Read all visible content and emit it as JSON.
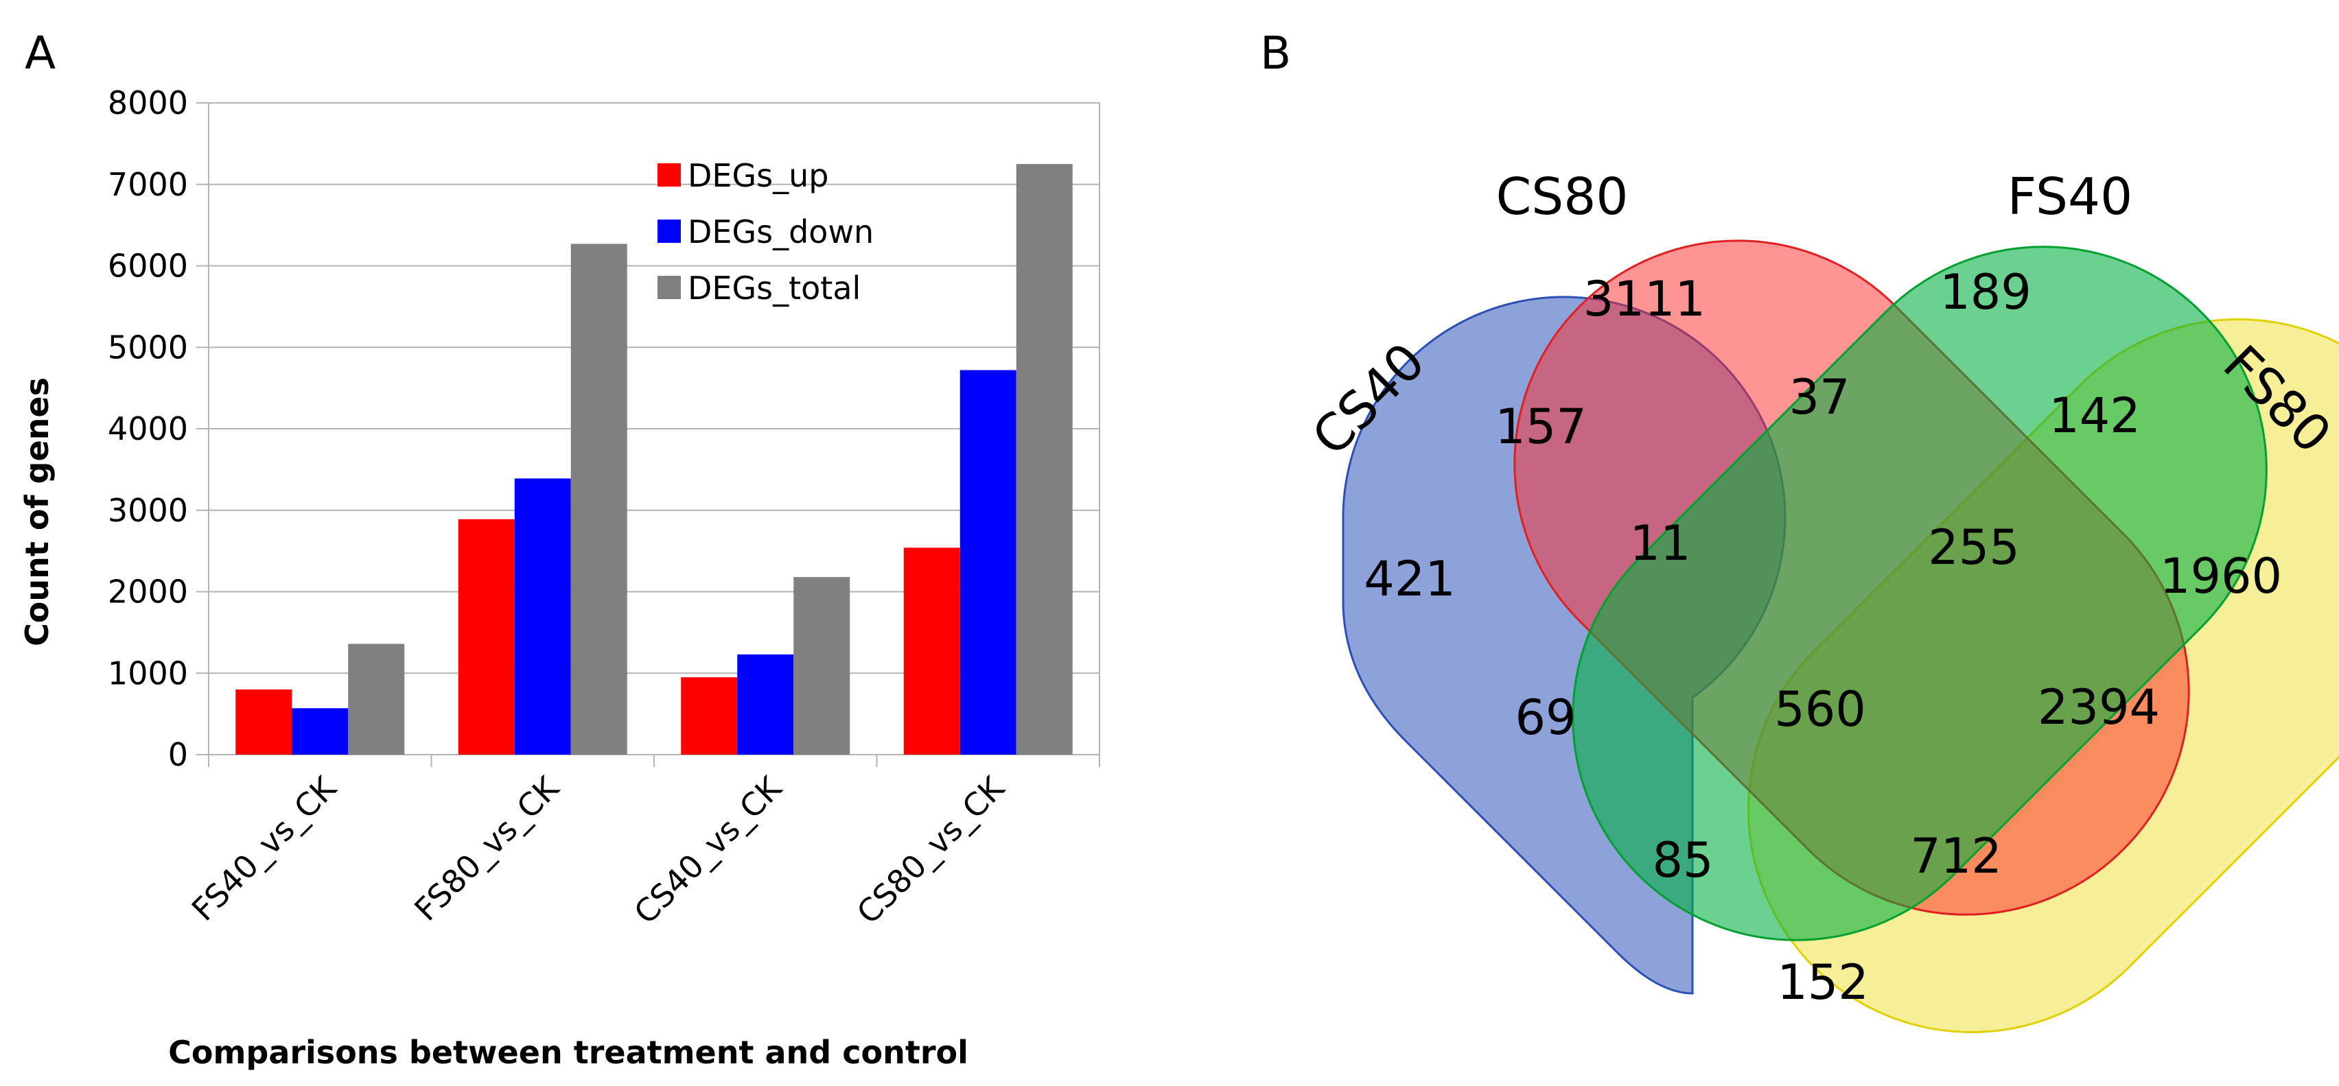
{
  "panel_labels": {
    "a": "A",
    "b": "B"
  },
  "chart_data": [
    {
      "type": "bar",
      "title": "",
      "categories": [
        "FS40_vs_CK",
        "FS80_vs_CK",
        "CS40_vs_CK",
        "CS80_vs_CK"
      ],
      "series": [
        {
          "name": "DEGs_up",
          "color": "#ff0000",
          "values": [
            800,
            2890,
            950,
            2540
          ]
        },
        {
          "name": "DEGs_down",
          "color": "#0000ff",
          "values": [
            570,
            3390,
            1230,
            4720
          ]
        },
        {
          "name": "DEGs_total",
          "color": "#808080",
          "values": [
            1360,
            6270,
            2180,
            7250
          ]
        }
      ],
      "xlabel": "Comparisons between treatment and control",
      "ylabel": "Count of genes",
      "ylim": [
        0,
        8000
      ],
      "yticks": [
        "0",
        "1000",
        "2000",
        "3000",
        "4000",
        "5000",
        "6000",
        "7000",
        "8000"
      ],
      "grid": true,
      "legend": "top-right"
    },
    {
      "type": "venn",
      "sets": [
        {
          "name": "CS40",
          "color": "#3c5fbf"
        },
        {
          "name": "CS80",
          "color": "#ff2a2a"
        },
        {
          "name": "FS40",
          "color": "#00b040"
        },
        {
          "name": "FS80",
          "color": "#f0e030"
        }
      ],
      "regions": [
        {
          "sets": [
            "CS80"
          ],
          "value": "3111"
        },
        {
          "sets": [
            "FS40"
          ],
          "value": "189"
        },
        {
          "sets": [
            "CS40",
            "CS80"
          ],
          "value": "157"
        },
        {
          "sets": [
            "CS80",
            "FS40"
          ],
          "value": "37"
        },
        {
          "sets": [
            "FS40",
            "FS80"
          ],
          "value": "142"
        },
        {
          "sets": [
            "CS40"
          ],
          "value": "421"
        },
        {
          "sets": [
            "CS40",
            "CS80",
            "FS40"
          ],
          "value": "11"
        },
        {
          "sets": [
            "CS80",
            "FS40",
            "FS80"
          ],
          "value": "255"
        },
        {
          "sets": [
            "FS80"
          ],
          "value": "1960"
        },
        {
          "sets": [
            "CS40",
            "FS40"
          ],
          "value": "69"
        },
        {
          "sets": [
            "CS40",
            "CS80",
            "FS40",
            "FS80"
          ],
          "value": "560"
        },
        {
          "sets": [
            "CS80",
            "FS80"
          ],
          "value": "2394"
        },
        {
          "sets": [
            "CS40",
            "FS40",
            "FS80"
          ],
          "value": "85"
        },
        {
          "sets": [
            "CS40",
            "CS80",
            "FS80"
          ],
          "value": "712"
        },
        {
          "sets": [
            "CS40",
            "FS80"
          ],
          "value": "152"
        }
      ]
    }
  ]
}
